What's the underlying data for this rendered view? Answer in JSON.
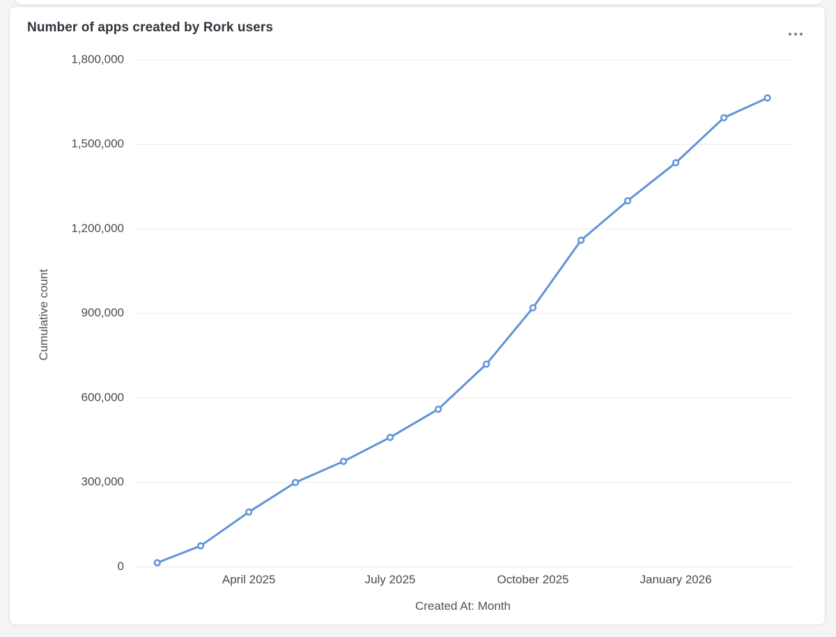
{
  "card": {
    "title": "Number of apps created by Rork users",
    "menu_icon": "ellipsis-horizontal"
  },
  "chart_data": {
    "type": "line",
    "title": "Number of apps created by Rork users",
    "xlabel": "Created At: Month",
    "ylabel": "Cumulative count",
    "x": [
      "2025-02",
      "2025-03",
      "2025-04",
      "2025-05",
      "2025-06",
      "2025-07",
      "2025-08",
      "2025-09",
      "2025-10",
      "2025-11",
      "2025-12",
      "2026-01",
      "2026-02",
      "2026-03"
    ],
    "values": [
      15000,
      75000,
      195000,
      300000,
      375000,
      460000,
      560000,
      720000,
      920000,
      1160000,
      1300000,
      1435000,
      1595000,
      1665000
    ],
    "ylim": [
      0,
      1800000
    ],
    "y_ticks": {
      "values": [
        0,
        300000,
        600000,
        900000,
        1200000,
        1500000,
        1800000
      ],
      "labels": [
        "0",
        "300,000",
        "600,000",
        "900,000",
        "1,200,000",
        "1,500,000",
        "1,800,000"
      ]
    },
    "x_ticks": [
      {
        "month": "2025-04",
        "label": "April 2025"
      },
      {
        "month": "2025-07",
        "label": "July 2025"
      },
      {
        "month": "2025-10",
        "label": "October 2025"
      },
      {
        "month": "2026-01",
        "label": "January 2026"
      }
    ],
    "grid": true,
    "legend": "none",
    "line_color": "#6093d6",
    "marker": "open-circle",
    "marker_fill": "#ffffff",
    "grid_color": "#e9e9ea",
    "tick_color": "#464b51",
    "axis_name_color": "#4c5157"
  }
}
